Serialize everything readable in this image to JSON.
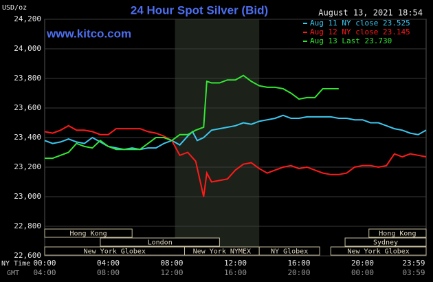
{
  "chart_data": {
    "type": "line",
    "title": "24 Hour Spot Silver (Bid)",
    "timestamp": "August 13, 2021 18:54",
    "watermark": "www.kitco.com",
    "y_label": "USD/oz",
    "x_label": "NY Time",
    "x2_label": "GMT",
    "xlim": [
      0,
      24
    ],
    "xticks": [
      {
        "value": 0,
        "label": "00:00"
      },
      {
        "value": 4,
        "label": "04:00"
      },
      {
        "value": 8,
        "label": "08:00"
      },
      {
        "value": 12,
        "label": "12:00"
      },
      {
        "value": 16,
        "label": "16:00"
      },
      {
        "value": 20,
        "label": "20:00"
      },
      {
        "value": 23.983,
        "label": "23:59"
      }
    ],
    "x2ticks": [
      {
        "value": 0,
        "label": "04:00"
      },
      {
        "value": 4,
        "label": "08:00"
      },
      {
        "value": 8,
        "label": "12:00"
      },
      {
        "value": 12,
        "label": "16:00"
      },
      {
        "value": 16,
        "label": "20:00"
      },
      {
        "value": 20,
        "label": "00:00"
      },
      {
        "value": 23.983,
        "label": "03:59"
      }
    ],
    "ylim": [
      22.6,
      24.2
    ],
    "yticks": [
      {
        "value": 22.6,
        "label": "22,600"
      },
      {
        "value": 22.8,
        "label": "22,800"
      },
      {
        "value": 23.0,
        "label": "23,000"
      },
      {
        "value": 23.2,
        "label": "23,200"
      },
      {
        "value": 23.4,
        "label": "23,400"
      },
      {
        "value": 23.6,
        "label": "23,600"
      },
      {
        "value": 23.8,
        "label": "23,800"
      },
      {
        "value": 24.0,
        "label": "24,000"
      },
      {
        "value": 24.2,
        "label": "24,200"
      }
    ],
    "grid": true,
    "highlight": [
      8.2,
      13.5
    ],
    "sessions": [
      {
        "label": "Hong Kong",
        "start": 0,
        "end": 5.5
      },
      {
        "label": "London",
        "start": 3.5,
        "end": 11.0
      },
      {
        "label": "New York Globex",
        "start": 0,
        "end": 8.8
      },
      {
        "label": "New York NYMEX",
        "start": 8.8,
        "end": 13.5
      },
      {
        "label": "NY Globex",
        "start": 13.5,
        "end": 17.3
      },
      {
        "label": "Hong Kong",
        "start": 20.4,
        "end": 24
      },
      {
        "label": "Sydney",
        "start": 18.9,
        "end": 24
      },
      {
        "label": "New York Globex",
        "start": 18,
        "end": 24
      }
    ],
    "series": [
      {
        "name": "Aug 11 NY close 23.525",
        "color": "#3cc8f0",
        "x": [
          0,
          0.5,
          1,
          1.5,
          2,
          2.5,
          3,
          3.5,
          4,
          4.5,
          5,
          5.5,
          6,
          6.5,
          7,
          7.5,
          8,
          8.5,
          9,
          9.3,
          9.6,
          10,
          10.5,
          11,
          11.5,
          12,
          12.5,
          13,
          13.5,
          14,
          14.5,
          15,
          15.5,
          16,
          16.5,
          17,
          17.5,
          18,
          18.5,
          19,
          19.5,
          20,
          20.5,
          21,
          21.5,
          22,
          22.5,
          23,
          23.5,
          24
        ],
        "values": [
          23.38,
          23.36,
          23.37,
          23.39,
          23.37,
          23.36,
          23.4,
          23.37,
          23.34,
          23.33,
          23.32,
          23.33,
          23.32,
          23.33,
          23.33,
          23.36,
          23.38,
          23.35,
          23.41,
          23.44,
          23.38,
          23.4,
          23.45,
          23.46,
          23.47,
          23.48,
          23.5,
          23.49,
          23.51,
          23.52,
          23.53,
          23.55,
          23.53,
          23.53,
          23.54,
          23.54,
          23.54,
          23.54,
          23.53,
          23.53,
          23.52,
          23.52,
          23.5,
          23.5,
          23.48,
          23.46,
          23.45,
          23.43,
          23.42,
          23.45
        ]
      },
      {
        "name": "Aug 12 NY close 23.145",
        "color": "#ff1a1a",
        "x": [
          0,
          0.5,
          1,
          1.5,
          2,
          2.5,
          3,
          3.5,
          4,
          4.5,
          5,
          5.5,
          6,
          6.5,
          7,
          7.5,
          8,
          8.5,
          9,
          9.5,
          10,
          10.2,
          10.5,
          11,
          11.5,
          12,
          12.5,
          13,
          13.5,
          14,
          14.5,
          15,
          15.5,
          16,
          16.5,
          17,
          17.5,
          18,
          18.5,
          19,
          19.5,
          20,
          20.5,
          21,
          21.5,
          22,
          22.5,
          23,
          23.5,
          24
        ],
        "values": [
          23.44,
          23.43,
          23.45,
          23.48,
          23.45,
          23.45,
          23.44,
          23.42,
          23.42,
          23.46,
          23.46,
          23.46,
          23.46,
          23.44,
          23.43,
          23.41,
          23.38,
          23.28,
          23.3,
          23.24,
          23.0,
          23.16,
          23.1,
          23.11,
          23.12,
          23.18,
          23.22,
          23.23,
          23.19,
          23.16,
          23.18,
          23.2,
          23.21,
          23.19,
          23.2,
          23.18,
          23.16,
          23.15,
          23.15,
          23.16,
          23.2,
          23.21,
          23.21,
          23.2,
          23.21,
          23.29,
          23.27,
          23.29,
          23.28,
          23.27
        ]
      },
      {
        "name": "Aug 13 Last 23.730",
        "color": "#33e633",
        "x": [
          0,
          0.5,
          1,
          1.5,
          2,
          2.5,
          3,
          3.5,
          4,
          4.5,
          5,
          5.5,
          6,
          6.5,
          7,
          7.5,
          8,
          8.5,
          9,
          9.5,
          10,
          10.2,
          10.5,
          11,
          11.5,
          12,
          12.5,
          13,
          13.5,
          14,
          14.5,
          15,
          15.5,
          16,
          16.5,
          17,
          17.5,
          18,
          18.5
        ],
        "values": [
          23.26,
          23.26,
          23.28,
          23.3,
          23.36,
          23.34,
          23.33,
          23.38,
          23.34,
          23.32,
          23.32,
          23.32,
          23.32,
          23.36,
          23.4,
          23.4,
          23.38,
          23.42,
          23.42,
          23.45,
          23.47,
          23.78,
          23.77,
          23.77,
          23.79,
          23.79,
          23.82,
          23.78,
          23.75,
          23.74,
          23.74,
          23.73,
          23.7,
          23.66,
          23.67,
          23.67,
          23.73,
          23.73,
          23.73
        ]
      }
    ]
  }
}
